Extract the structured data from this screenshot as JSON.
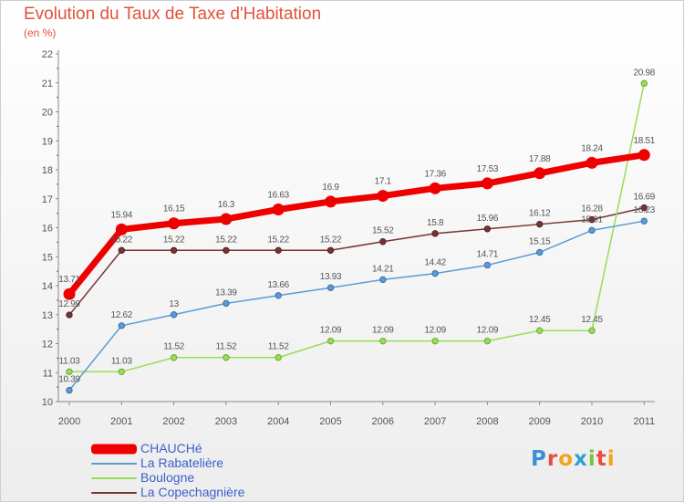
{
  "title": "Evolution du Taux de Taxe d'Habitation",
  "subtitle": "(en %)",
  "logo": {
    "text": "Proxiti",
    "letter_colors": [
      "#3a8fd8",
      "#e84c3d",
      "#f2a31b",
      "#2e9fd8",
      "#7cc242",
      "#e84c3d",
      "#f2a31b"
    ]
  },
  "chart_data": {
    "type": "line",
    "x": [
      "2000",
      "2001",
      "2002",
      "2003",
      "2004",
      "2005",
      "2006",
      "2007",
      "2008",
      "2009",
      "2010",
      "2011"
    ],
    "ylim": [
      10,
      22
    ],
    "yticks": [
      "10",
      "11",
      "12",
      "13",
      "14",
      "15",
      "16",
      "17",
      "18",
      "19",
      "20",
      "21",
      "22"
    ],
    "grid": false,
    "legend_position": "bottom-left",
    "series": [
      {
        "name": "CHAUCHé",
        "color": "#ee0000",
        "values": [
          13.71,
          15.94,
          16.15,
          16.3,
          16.63,
          16.9,
          17.1,
          17.36,
          17.53,
          17.88,
          18.24,
          18.51
        ],
        "labels": [
          "13.71",
          "15.94",
          "16.15",
          "16.3",
          "16.63",
          "16.9",
          "17.1",
          "17.36",
          "17.53",
          "17.88",
          "18.24",
          "18.51"
        ]
      },
      {
        "name": "La Rabatelière",
        "color": "#5b9bd5",
        "values": [
          10.39,
          12.62,
          13,
          13.39,
          13.66,
          13.93,
          14.21,
          14.42,
          14.71,
          15.15,
          15.91,
          16.23
        ],
        "labels": [
          "10.39",
          "12.62",
          "13",
          "13.39",
          "13.66",
          "13.93",
          "14.21",
          "14.42",
          "14.71",
          "15.15",
          "15.91",
          "16.23"
        ]
      },
      {
        "name": "Boulogne",
        "color": "#99dd55",
        "values": [
          11.03,
          11.03,
          11.52,
          11.52,
          11.52,
          12.09,
          12.09,
          12.09,
          12.09,
          12.45,
          12.45,
          20.98
        ],
        "labels": [
          "11.03",
          "11.03",
          "11.52",
          "11.52",
          "11.52",
          "12.09",
          "12.09",
          "12.09",
          "12.09",
          "12.45",
          "12.45",
          "20.98"
        ]
      },
      {
        "name": "La Copechagnière",
        "color": "#773333",
        "values": [
          12.99,
          15.22,
          15.22,
          15.22,
          15.22,
          15.22,
          15.52,
          15.8,
          15.96,
          16.12,
          16.28,
          16.69
        ],
        "labels": [
          "12.99",
          "15.22",
          "15.22",
          "15.22",
          "15.22",
          "15.22",
          "15.52",
          "15.8",
          "15.96",
          "16.12",
          "16.28",
          "16.69"
        ]
      }
    ]
  }
}
